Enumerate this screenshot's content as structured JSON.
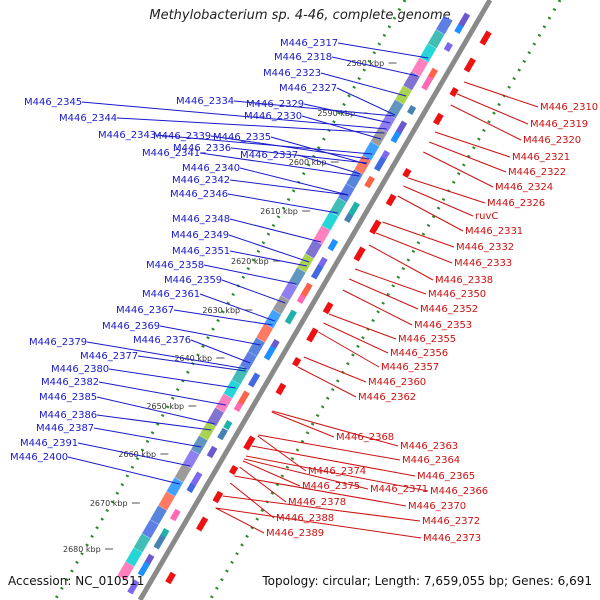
{
  "title": "Methylobacterium sp. 4-46, complete genome",
  "accession": "Accession: NC_010511",
  "topology": "Topology: circular; Length: 7,659,055 bp; Genes: 6,691",
  "kbp_ticks": [
    "2580 kbp",
    "2590 kbp",
    "2600 kbp",
    "2610 kbp",
    "2620 kbp",
    "2630 kbp",
    "2640 kbp",
    "2650 kbp",
    "2660 kbp",
    "2670 kbp",
    "2680 kbp"
  ],
  "blue_labels": [
    "M446_2317",
    "M446_2318",
    "M446_2323",
    "M446_2327",
    "M446_2334",
    "M446_2329",
    "M446_2330",
    "M446_2345",
    "M446_2344",
    "M446_2343",
    "M446_2339",
    "M446_2335",
    "M446_2336",
    "M446_2337",
    "M446_2341",
    "M446_2340",
    "M446_2342",
    "M446_2346",
    "M446_2348",
    "M446_2349",
    "M446_2351",
    "M446_2358",
    "M446_2359",
    "M446_2361",
    "M446_2367",
    "M446_2369",
    "M446_2376",
    "M446_2379",
    "M446_2377",
    "M446_2380",
    "M446_2382",
    "M446_2385",
    "M446_2386",
    "M446_2387",
    "M446_2391",
    "M446_2400"
  ],
  "red_labels": [
    "M446_2310",
    "M446_2319",
    "M446_2320",
    "M446_2321",
    "M446_2322",
    "M446_2324",
    "M446_2326",
    "ruvC",
    "M446_2331",
    "M446_2332",
    "M446_2333",
    "M446_2338",
    "M446_2350",
    "M446_2352",
    "M446_2353",
    "M446_2355",
    "M446_2356",
    "M446_2357",
    "M446_2360",
    "M446_2362",
    "M446_2363",
    "M446_2364",
    "M446_2365",
    "M446_2366",
    "M446_2368",
    "M446_2371",
    "M446_2374",
    "M446_2375",
    "M446_2370",
    "M446_2378",
    "M446_2372",
    "M446_2373",
    "M446_2388",
    "M446_2389"
  ],
  "colors": {
    "blue": "#1a1ac8",
    "red": "#cc1111",
    "backbone": "#888888",
    "dots": "#228b22"
  }
}
